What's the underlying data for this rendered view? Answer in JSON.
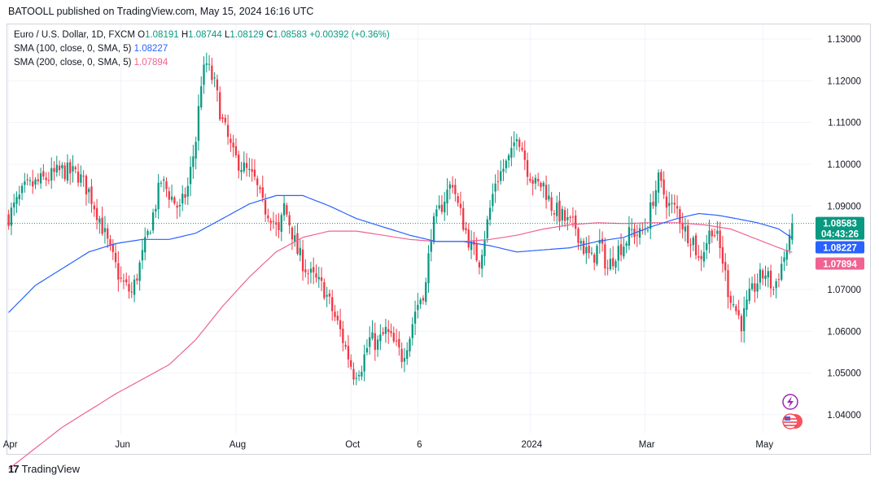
{
  "header": {
    "published": "BATOOLL published on TradingView.com, May 15, 2024 16:16 UTC"
  },
  "legend": {
    "symbol": "Euro / U.S. Dollar, 1D, FXCM",
    "o_label": "O",
    "o": "1.08191",
    "h_label": "H",
    "h": "1.08744",
    "l_label": "L",
    "l": "1.08129",
    "c_label": "C",
    "c": "1.08583",
    "change": "+0.00392 (+0.36%)",
    "ma100_label": "SMA (100, close, 0, SMA, 5)",
    "ma100_value": "1.08227",
    "ma200_label": "SMA (200, close, 0, SMA, 5)",
    "ma200_value": "1.07894"
  },
  "footer": {
    "brand": "TradingView",
    "logo": "17"
  },
  "colors": {
    "up": "#089981",
    "down": "#f23645",
    "ma100": "#2962ff",
    "ma200": "#f06292",
    "grid": "#f0f3fa"
  },
  "chart_data": {
    "type": "candlestick",
    "symbol": "EURUSD",
    "ylim": [
      1.0355,
      1.1335
    ],
    "yticks": [
      1.13,
      1.12,
      1.11,
      1.1,
      1.09,
      1.07,
      1.06,
      1.05,
      1.04
    ],
    "ytick_labels": [
      "1.13000",
      "1.12000",
      "1.11000",
      "1.10000",
      "1.09000",
      "1.07000",
      "1.06000",
      "1.05000",
      "1.04000"
    ],
    "xticks": [
      {
        "label": "Apr",
        "x": 0
      },
      {
        "label": "Jun",
        "x": 42
      },
      {
        "label": "Aug",
        "x": 85
      },
      {
        "label": "Oct",
        "x": 128
      },
      {
        "label": "6",
        "x": 153
      },
      {
        "label": "2024",
        "x": 195
      },
      {
        "label": "Mar",
        "x": 238
      },
      {
        "label": "May",
        "x": 282
      }
    ],
    "n_bars": 294,
    "last_price": {
      "value": 1.08583,
      "label": "1.08583",
      "countdown": "04:43:26"
    },
    "ma100_tag": {
      "value": 1.08227,
      "label": "1.08227"
    },
    "ma200_tag": {
      "value": 1.07894,
      "label": "1.07894"
    },
    "price_anchors": [
      [
        0,
        1.0875
      ],
      [
        6,
        1.094
      ],
      [
        12,
        1.096
      ],
      [
        20,
        1.0985
      ],
      [
        26,
        1.0975
      ],
      [
        30,
        1.0935
      ],
      [
        34,
        1.087
      ],
      [
        38,
        1.079
      ],
      [
        42,
        1.072
      ],
      [
        46,
        1.069
      ],
      [
        50,
        1.078
      ],
      [
        54,
        1.088
      ],
      [
        57,
        1.096
      ],
      [
        60,
        1.093
      ],
      [
        64,
        1.089
      ],
      [
        67,
        1.0945
      ],
      [
        70,
        1.106
      ],
      [
        72,
        1.12
      ],
      [
        74,
        1.124
      ],
      [
        77,
        1.119
      ],
      [
        80,
        1.11
      ],
      [
        84,
        1.102
      ],
      [
        88,
        1.099
      ],
      [
        92,
        1.096
      ],
      [
        95,
        1.09
      ],
      [
        98,
        1.088
      ],
      [
        101,
        1.083
      ],
      [
        103,
        1.09
      ],
      [
        105,
        1.086
      ],
      [
        108,
        1.079
      ],
      [
        112,
        1.074
      ],
      [
        115,
        1.072
      ],
      [
        118,
        1.07
      ],
      [
        121,
        1.065
      ],
      [
        124,
        1.06
      ],
      [
        127,
        1.054
      ],
      [
        129,
        1.05
      ],
      [
        132,
        1.052
      ],
      [
        135,
        1.058
      ],
      [
        138,
        1.057
      ],
      [
        141,
        1.06
      ],
      [
        144,
        1.057
      ],
      [
        147,
        1.054
      ],
      [
        150,
        1.059
      ],
      [
        152,
        1.065
      ],
      [
        154,
        1.068
      ],
      [
        156,
        1.071
      ],
      [
        158,
        1.084
      ],
      [
        160,
        1.087
      ],
      [
        163,
        1.092
      ],
      [
        166,
        1.096
      ],
      [
        168,
        1.09
      ],
      [
        170,
        1.086
      ],
      [
        173,
        1.08
      ],
      [
        176,
        1.077
      ],
      [
        179,
        1.086
      ],
      [
        182,
        1.096
      ],
      [
        185,
        1.099
      ],
      [
        188,
        1.102
      ],
      [
        190,
        1.108
      ],
      [
        192,
        1.104
      ],
      [
        194,
        1.099
      ],
      [
        197,
        1.095
      ],
      [
        200,
        1.095
      ],
      [
        203,
        1.09
      ],
      [
        206,
        1.088
      ],
      [
        209,
        1.086
      ],
      [
        212,
        1.085
      ],
      [
        215,
        1.08
      ],
      [
        218,
        1.077
      ],
      [
        221,
        1.081
      ],
      [
        224,
        1.075
      ],
      [
        227,
        1.079
      ],
      [
        230,
        1.081
      ],
      [
        233,
        1.084
      ],
      [
        236,
        1.083
      ],
      [
        239,
        1.086
      ],
      [
        241,
        1.092
      ],
      [
        243,
        1.096
      ],
      [
        245,
        1.093
      ],
      [
        247,
        1.09
      ],
      [
        250,
        1.089
      ],
      [
        253,
        1.084
      ],
      [
        256,
        1.082
      ],
      [
        258,
        1.077
      ],
      [
        260,
        1.08
      ],
      [
        263,
        1.085
      ],
      [
        265,
        1.082
      ],
      [
        267,
        1.077
      ],
      [
        269,
        1.07
      ],
      [
        272,
        1.065
      ],
      [
        274,
        1.062
      ],
      [
        277,
        1.068
      ],
      [
        280,
        1.072
      ],
      [
        283,
        1.074
      ],
      [
        286,
        1.07
      ],
      [
        288,
        1.074
      ],
      [
        290,
        1.078
      ],
      [
        292,
        1.081
      ],
      [
        293,
        1.0858
      ]
    ],
    "ma100_anchors": [
      [
        0,
        1.0645
      ],
      [
        10,
        1.071
      ],
      [
        20,
        1.075
      ],
      [
        30,
        1.079
      ],
      [
        40,
        1.081
      ],
      [
        50,
        1.082
      ],
      [
        60,
        1.082
      ],
      [
        70,
        1.0835
      ],
      [
        80,
        1.087
      ],
      [
        90,
        1.0905
      ],
      [
        100,
        1.0925
      ],
      [
        110,
        1.0925
      ],
      [
        120,
        1.09
      ],
      [
        130,
        1.087
      ],
      [
        140,
        1.085
      ],
      [
        150,
        1.083
      ],
      [
        160,
        1.0815
      ],
      [
        170,
        1.0815
      ],
      [
        180,
        1.0805
      ],
      [
        190,
        1.079
      ],
      [
        200,
        1.0795
      ],
      [
        210,
        1.08
      ],
      [
        220,
        1.0815
      ],
      [
        230,
        1.0825
      ],
      [
        240,
        1.085
      ],
      [
        250,
        1.087
      ],
      [
        258,
        1.0882
      ],
      [
        265,
        1.0878
      ],
      [
        272,
        1.087
      ],
      [
        280,
        1.086
      ],
      [
        288,
        1.0845
      ],
      [
        293,
        1.0823
      ]
    ],
    "ma200_anchors": [
      [
        0,
        1.027
      ],
      [
        20,
        1.037
      ],
      [
        40,
        1.045
      ],
      [
        60,
        1.052
      ],
      [
        70,
        1.058
      ],
      [
        80,
        1.066
      ],
      [
        90,
        1.073
      ],
      [
        100,
        1.079
      ],
      [
        110,
        1.0825
      ],
      [
        120,
        1.084
      ],
      [
        130,
        1.084
      ],
      [
        140,
        1.083
      ],
      [
        150,
        1.082
      ],
      [
        160,
        1.0815
      ],
      [
        170,
        1.0815
      ],
      [
        180,
        1.082
      ],
      [
        190,
        1.083
      ],
      [
        200,
        1.0845
      ],
      [
        210,
        1.0855
      ],
      [
        220,
        1.086
      ],
      [
        230,
        1.0858
      ],
      [
        240,
        1.086
      ],
      [
        250,
        1.086
      ],
      [
        260,
        1.0855
      ],
      [
        270,
        1.0845
      ],
      [
        280,
        1.082
      ],
      [
        288,
        1.08
      ],
      [
        293,
        1.0789
      ]
    ]
  }
}
